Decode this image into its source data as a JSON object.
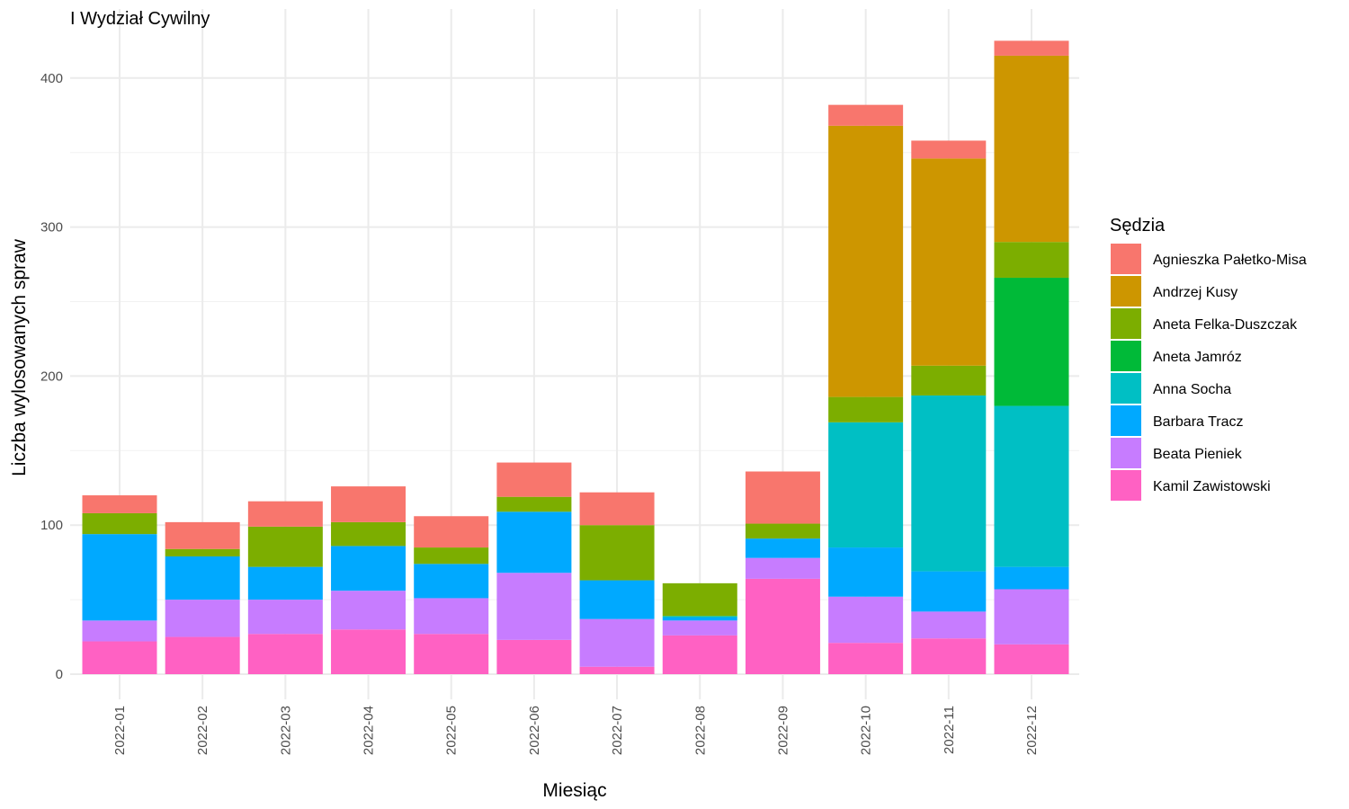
{
  "chart_data": {
    "type": "bar",
    "stacked": true,
    "title": "I Wydział Cywilny",
    "xlabel": "Miesiąc",
    "ylabel": "Liczba wylosowanych spraw",
    "ylim": [
      0,
      425
    ],
    "yticks": [
      0,
      100,
      200,
      300,
      400
    ],
    "grid": true,
    "legend_title": "Sędzia",
    "legend_position": "right",
    "categories": [
      "2022-01",
      "2022-02",
      "2022-03",
      "2022-04",
      "2022-05",
      "2022-06",
      "2022-07",
      "2022-08",
      "2022-09",
      "2022-10",
      "2022-11",
      "2022-12"
    ],
    "series": [
      {
        "name": "Kamil Zawistowski",
        "color": "#FF61C3",
        "values": [
          22,
          25,
          27,
          30,
          27,
          23,
          5,
          26,
          64,
          21,
          24,
          20
        ]
      },
      {
        "name": "Beata Pieniek",
        "color": "#C77CFF",
        "values": [
          14,
          25,
          23,
          26,
          24,
          45,
          32,
          10,
          14,
          31,
          18,
          37
        ]
      },
      {
        "name": "Barbara Tracz",
        "color": "#00A9FF",
        "values": [
          58,
          29,
          22,
          30,
          23,
          41,
          26,
          2,
          13,
          33,
          27,
          15
        ]
      },
      {
        "name": "Anna Socha",
        "color": "#00BFC4",
        "values": [
          0,
          0,
          0,
          0,
          0,
          0,
          0,
          1,
          0,
          84,
          118,
          108
        ]
      },
      {
        "name": "Aneta Jamróz",
        "color": "#00BA38",
        "values": [
          0,
          0,
          0,
          0,
          0,
          0,
          0,
          0,
          0,
          0,
          0,
          86
        ]
      },
      {
        "name": "Aneta Felka-Duszczak",
        "color": "#7CAE00",
        "values": [
          14,
          5,
          27,
          16,
          11,
          10,
          37,
          22,
          10,
          17,
          20,
          24
        ]
      },
      {
        "name": "Andrzej Kusy",
        "color": "#CD9600",
        "values": [
          0,
          0,
          0,
          0,
          0,
          0,
          0,
          0,
          0,
          182,
          139,
          125
        ]
      },
      {
        "name": "Agnieszka Pałetko-Misa",
        "color": "#F8766D",
        "values": [
          12,
          18,
          17,
          24,
          21,
          23,
          22,
          0,
          35,
          14,
          12,
          10
        ]
      }
    ],
    "legend_order": [
      "Agnieszka Pałetko-Misa",
      "Andrzej Kusy",
      "Aneta Felka-Duszczak",
      "Aneta Jamróz",
      "Anna Socha",
      "Barbara Tracz",
      "Beata Pieniek",
      "Kamil Zawistowski"
    ]
  }
}
